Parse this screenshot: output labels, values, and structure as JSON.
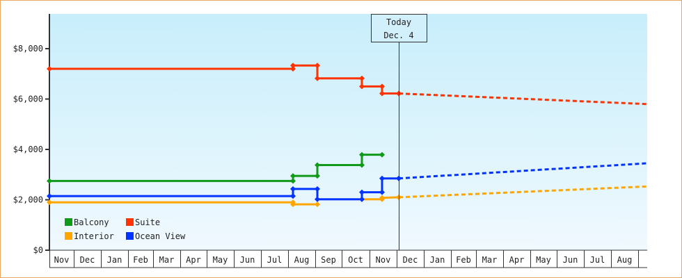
{
  "chart_data": {
    "type": "line",
    "title": "",
    "xlabel": "",
    "ylabel": "",
    "ylim": [
      0,
      9300
    ],
    "y_ticks": [
      "$0",
      "$2,000",
      "$4,000",
      "$6,000",
      "$8,000"
    ],
    "y_tick_values": [
      0,
      2000,
      4000,
      6000,
      8000
    ],
    "x_ticks": [
      "Nov",
      "Dec",
      "Jan",
      "Feb",
      "Mar",
      "Apr",
      "May",
      "Jun",
      "Jul",
      "Aug",
      "Sep",
      "Oct",
      "Nov",
      "Dec",
      "Jan",
      "Feb",
      "Mar",
      "Apr",
      "May",
      "Jun",
      "Jul",
      "Aug"
    ],
    "today_marker": {
      "line1": "Today",
      "line2": "Dec. 4"
    },
    "legend": [
      {
        "name": "Balcony",
        "color": "#11991a"
      },
      {
        "name": "Suite",
        "color": "#ff3300"
      },
      {
        "name": "Interior",
        "color": "#ffa500"
      },
      {
        "name": "Ocean View",
        "color": "#0033ff"
      }
    ],
    "series": [
      {
        "name": "Suite",
        "color": "#ff3300",
        "points": [
          [
            "Nov (start)",
            7200
          ],
          [
            "Aug (early)",
            7200
          ],
          [
            "Aug (early)",
            7330
          ],
          [
            "Sep (early)",
            7330
          ],
          [
            "Sep (early)",
            6820
          ],
          [
            "Oct (late)",
            6820
          ],
          [
            "Oct (late)",
            6500
          ],
          [
            "Nov (late)",
            6500
          ],
          [
            "Nov (late)",
            6220
          ],
          [
            "Dec 4",
            6220
          ]
        ],
        "projection": [
          [
            "Dec 4",
            6220
          ],
          [
            "Aug (end)",
            5800
          ]
        ]
      },
      {
        "name": "Balcony",
        "color": "#11991a",
        "points": [
          [
            "Nov (start)",
            2750
          ],
          [
            "Aug (early)",
            2750
          ],
          [
            "Aug (early)",
            2950
          ],
          [
            "Sep (early)",
            2950
          ],
          [
            "Sep (early)",
            3380
          ],
          [
            "Oct (late)",
            3380
          ],
          [
            "Oct (late)",
            3790
          ],
          [
            "Nov (late)",
            3790
          ]
        ],
        "projection": []
      },
      {
        "name": "Ocean View",
        "color": "#0033ff",
        "points": [
          [
            "Nov (start)",
            2150
          ],
          [
            "Aug (early)",
            2150
          ],
          [
            "Aug (early)",
            2430
          ],
          [
            "Sep (early)",
            2430
          ],
          [
            "Sep (early)",
            2020
          ],
          [
            "Oct (late)",
            2020
          ],
          [
            "Oct (late)",
            2300
          ],
          [
            "Nov (late)",
            2300
          ],
          [
            "Nov (late)",
            2850
          ],
          [
            "Dec 4",
            2850
          ]
        ],
        "projection": [
          [
            "Dec 4",
            2850
          ],
          [
            "Aug (end)",
            3450
          ]
        ]
      },
      {
        "name": "Interior",
        "color": "#ffa500",
        "points": [
          [
            "Nov (start)",
            1900
          ],
          [
            "Aug (early)",
            1900
          ],
          [
            "Aug (early)",
            1820
          ],
          [
            "Sep (early)",
            1820
          ],
          [
            "Oct (late)",
            2020
          ],
          [
            "Nov (late)",
            2020
          ],
          [
            "Nov (late)",
            2080
          ],
          [
            "Dec 4",
            2100
          ]
        ],
        "projection": [
          [
            "Dec 4",
            2100
          ],
          [
            "Aug (end)",
            2530
          ]
        ]
      }
    ]
  }
}
